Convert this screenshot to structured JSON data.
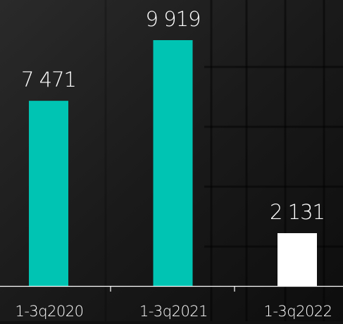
{
  "chart_data": {
    "type": "bar",
    "categories": [
      "1-3q2020",
      "1-3q2021",
      "1-3q2022"
    ],
    "values": [
      7471,
      9919,
      2131
    ],
    "value_labels": [
      "7 471",
      "9 919",
      "2 131"
    ],
    "colors": [
      "#00c4b3",
      "#00c4b3",
      "#ffffff"
    ]
  }
}
